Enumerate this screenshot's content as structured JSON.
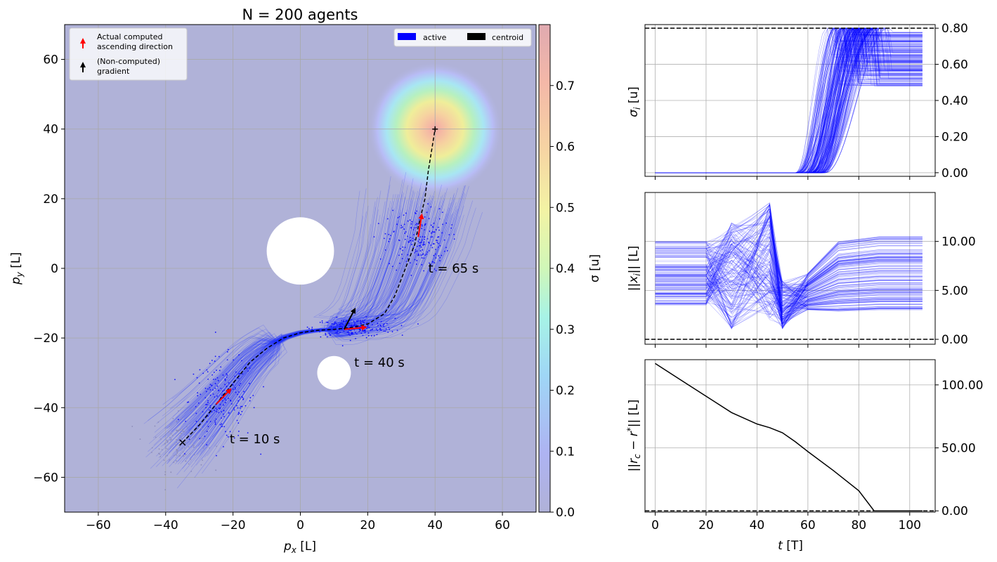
{
  "chart_data": [
    {
      "type": "scatter",
      "title": "N = 200 agents",
      "xlabel": "p_x [L]",
      "ylabel": "p_y [L]",
      "xlim": [
        -70,
        70
      ],
      "ylim": [
        -70,
        70
      ],
      "xticks": [
        -60,
        -40,
        -20,
        0,
        20,
        40,
        60
      ],
      "yticks": [
        -60,
        -40,
        -20,
        0,
        20,
        40,
        60
      ],
      "grid": true,
      "background_color": "#b0b2d8",
      "field": {
        "peak": [
          40,
          40
        ],
        "max_sigma": 0.8
      },
      "obstacles": [
        {
          "center": [
            0,
            5
          ],
          "radius": 10
        },
        {
          "center": [
            10,
            -30
          ],
          "radius": 5
        }
      ],
      "centroid_path": [
        [
          -35,
          -50
        ],
        [
          -30,
          -45
        ],
        [
          -25,
          -39
        ],
        [
          -20,
          -33
        ],
        [
          -15,
          -27
        ],
        [
          -10,
          -23
        ],
        [
          -5,
          -20
        ],
        [
          0,
          -18.5
        ],
        [
          5,
          -17.8
        ],
        [
          10,
          -17.5
        ],
        [
          15,
          -17
        ],
        [
          20,
          -16
        ],
        [
          25,
          -13
        ],
        [
          28,
          -8
        ],
        [
          30,
          -3
        ],
        [
          32,
          2
        ],
        [
          34,
          7
        ],
        [
          35,
          12
        ],
        [
          37,
          20
        ],
        [
          38,
          28
        ],
        [
          39,
          34
        ],
        [
          40,
          40
        ]
      ],
      "snapshots": [
        {
          "label": "t = 10 s",
          "center": [
            -23,
            -38
          ],
          "label_pos": [
            -21,
            -49
          ]
        },
        {
          "label": "t = 40 s",
          "center": [
            17,
            -17
          ],
          "label_pos": [
            16,
            -27
          ]
        },
        {
          "label": "t = 65 s",
          "center": [
            35,
            8
          ],
          "label_pos": [
            38,
            0
          ]
        }
      ],
      "arrows": [
        {
          "kind": "computed",
          "color": "#ff0000",
          "from": [
            -25,
            -39
          ],
          "to": [
            -21,
            -35
          ]
        },
        {
          "kind": "computed",
          "color": "#ff0000",
          "from": [
            13,
            -17.5
          ],
          "to": [
            19,
            -17
          ]
        },
        {
          "kind": "computed",
          "color": "#ff0000",
          "from": [
            35,
            9
          ],
          "to": [
            36,
            15
          ]
        },
        {
          "kind": "gradient",
          "color": "#000000",
          "from": [
            13,
            -17.5
          ],
          "to": [
            16,
            -12
          ]
        }
      ],
      "markers": [
        {
          "symbol": "x",
          "at": [
            -35,
            -50
          ]
        },
        {
          "symbol": "+",
          "at": [
            40,
            40
          ]
        }
      ],
      "legend_arrows": {
        "position": "upper-left",
        "items": [
          {
            "label_line1": "Actual computed",
            "label_line2": "ascending direction",
            "color": "#ff0000"
          },
          {
            "label_line1": "(Non-computed)",
            "label_line2": "gradient",
            "color": "#000000"
          }
        ]
      },
      "legend_series": {
        "position": "upper-right",
        "items": [
          {
            "label": "active",
            "color": "#0000ff"
          },
          {
            "label": "centroid",
            "color": "#000000"
          }
        ]
      },
      "colorbar": {
        "label": "σ [u]",
        "range": [
          0,
          0.8
        ],
        "ticks": [
          "0.0",
          "0.1",
          "0.2",
          "0.3",
          "0.4",
          "0.5",
          "0.6",
          "0.7"
        ]
      }
    },
    {
      "type": "line",
      "ylabel": "σ_i [u]",
      "xlim": [
        -4,
        110
      ],
      "ylim": [
        -0.02,
        0.82
      ],
      "yticks": [
        "0.00",
        "0.20",
        "0.40",
        "0.60",
        "0.80"
      ],
      "hline": 0.8,
      "grid": true,
      "series_color": "#0000ff",
      "description_values": {
        "rise_start": 55,
        "rise_end": 85,
        "final_min": 0.48,
        "final_max": 0.78,
        "end_t": 105
      }
    },
    {
      "type": "line",
      "ylabel": "||x_i|| [L]",
      "xlim": [
        -4,
        110
      ],
      "ylim": [
        -0.5,
        15
      ],
      "yticks": [
        "0.00",
        "5.00",
        "10.00"
      ],
      "hline": 0,
      "grid": true,
      "series_color": "#0000ff",
      "description_values": {
        "initial_min": 3.5,
        "initial_max": 10,
        "event_times": [
          20,
          45
        ],
        "end_t": 105
      }
    },
    {
      "type": "line",
      "xlabel": "t [T]",
      "ylabel": "||r_c − r*|| [L]",
      "xlim": [
        -4,
        110
      ],
      "ylim": [
        -1,
        120
      ],
      "xticks": [
        "0",
        "20",
        "40",
        "60",
        "80",
        "100"
      ],
      "yticks": [
        "0.00",
        "50.00",
        "100.00"
      ],
      "hline": 0,
      "grid": true,
      "series": [
        {
          "color": "#000000",
          "x": [
            0,
            10,
            20,
            30,
            40,
            45,
            50,
            55,
            60,
            70,
            80,
            86,
            95,
            105
          ],
          "y": [
            117,
            104,
            91,
            78,
            69,
            66,
            62,
            55,
            47,
            32,
            16,
            0,
            0,
            0
          ]
        }
      ]
    }
  ]
}
